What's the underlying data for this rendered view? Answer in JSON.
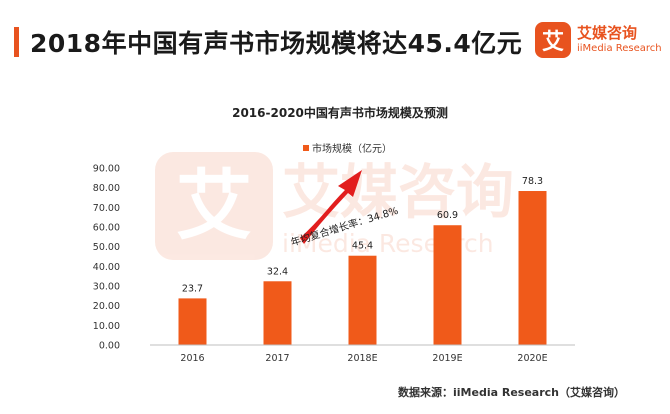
{
  "header": {
    "title": "2018年中国有声书市场规模将达45.4亿元",
    "accent_color": "#e8531f"
  },
  "brand": {
    "mark": "艾",
    "name": "艾媒咨询",
    "sub": "iiMedia Research",
    "color": "#e8531f"
  },
  "watermark": {
    "mark": "艾",
    "name": "艾媒咨询",
    "sub": "iiMedia Research"
  },
  "chart_data": {
    "type": "bar",
    "title": "2016-2020中国有声书市场规模及预测",
    "categories": [
      "2016",
      "2017",
      "2018E",
      "2019E",
      "2020E"
    ],
    "series": [
      {
        "name": "市场规模（亿元）",
        "values": [
          23.7,
          32.4,
          45.4,
          60.9,
          78.3
        ],
        "color": "#f05a1a"
      }
    ],
    "data_labels": [
      "23.7",
      "32.4",
      "45.4",
      "60.9",
      "78.3"
    ],
    "ylim": [
      0,
      90
    ],
    "yticks": [
      "0.00",
      "10.00",
      "20.00",
      "30.00",
      "40.00",
      "50.00",
      "60.00",
      "70.00",
      "80.00",
      "90.00"
    ],
    "legend_position": "top-center",
    "grid": false,
    "annotation": "年均复合增长率：34.8%"
  },
  "source": "数据来源：iiMedia Research（艾媒咨询）"
}
